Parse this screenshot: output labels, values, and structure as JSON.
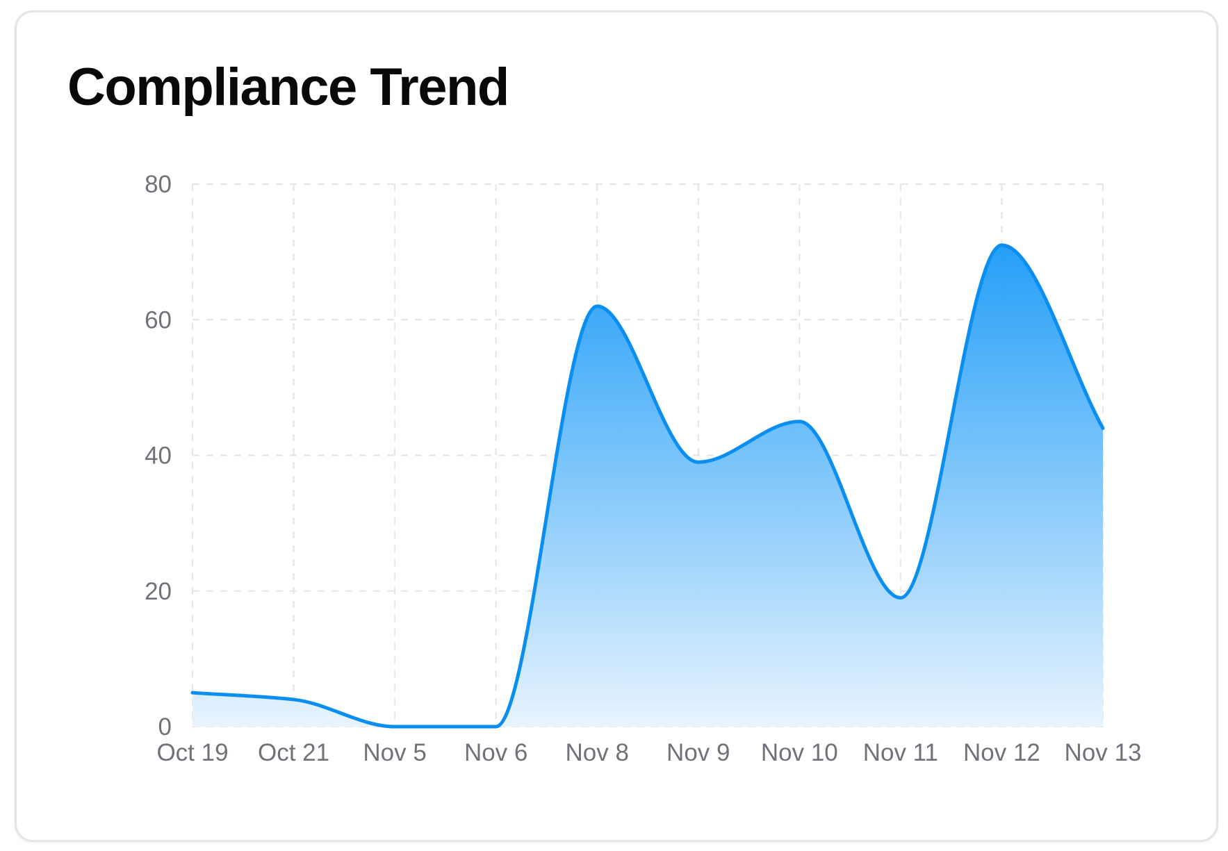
{
  "card": {
    "title": "Compliance Trend"
  },
  "colors": {
    "line": "#0a8ff0",
    "fill_top": "#1a9af7",
    "fill_bottom": "#e8f4fe",
    "grid": "#e4e4e7",
    "tick_text": "#71717a",
    "title_text": "#09090b"
  },
  "chart_data": {
    "type": "area",
    "title": "Compliance Trend",
    "xlabel": "",
    "ylabel": "",
    "categories": [
      "Oct 19",
      "Oct 21",
      "Nov 5",
      "Nov 6",
      "Nov 8",
      "Nov 9",
      "Nov 10",
      "Nov 11",
      "Nov 12",
      "Nov 13"
    ],
    "series": [
      {
        "values": [
          5,
          4,
          0,
          0,
          62,
          39,
          45,
          19,
          71,
          44
        ]
      }
    ],
    "ylim": [
      0,
      80
    ],
    "yticks": [
      0,
      20,
      40,
      60,
      80
    ],
    "grid": true,
    "smooth": true,
    "legend": "none"
  }
}
